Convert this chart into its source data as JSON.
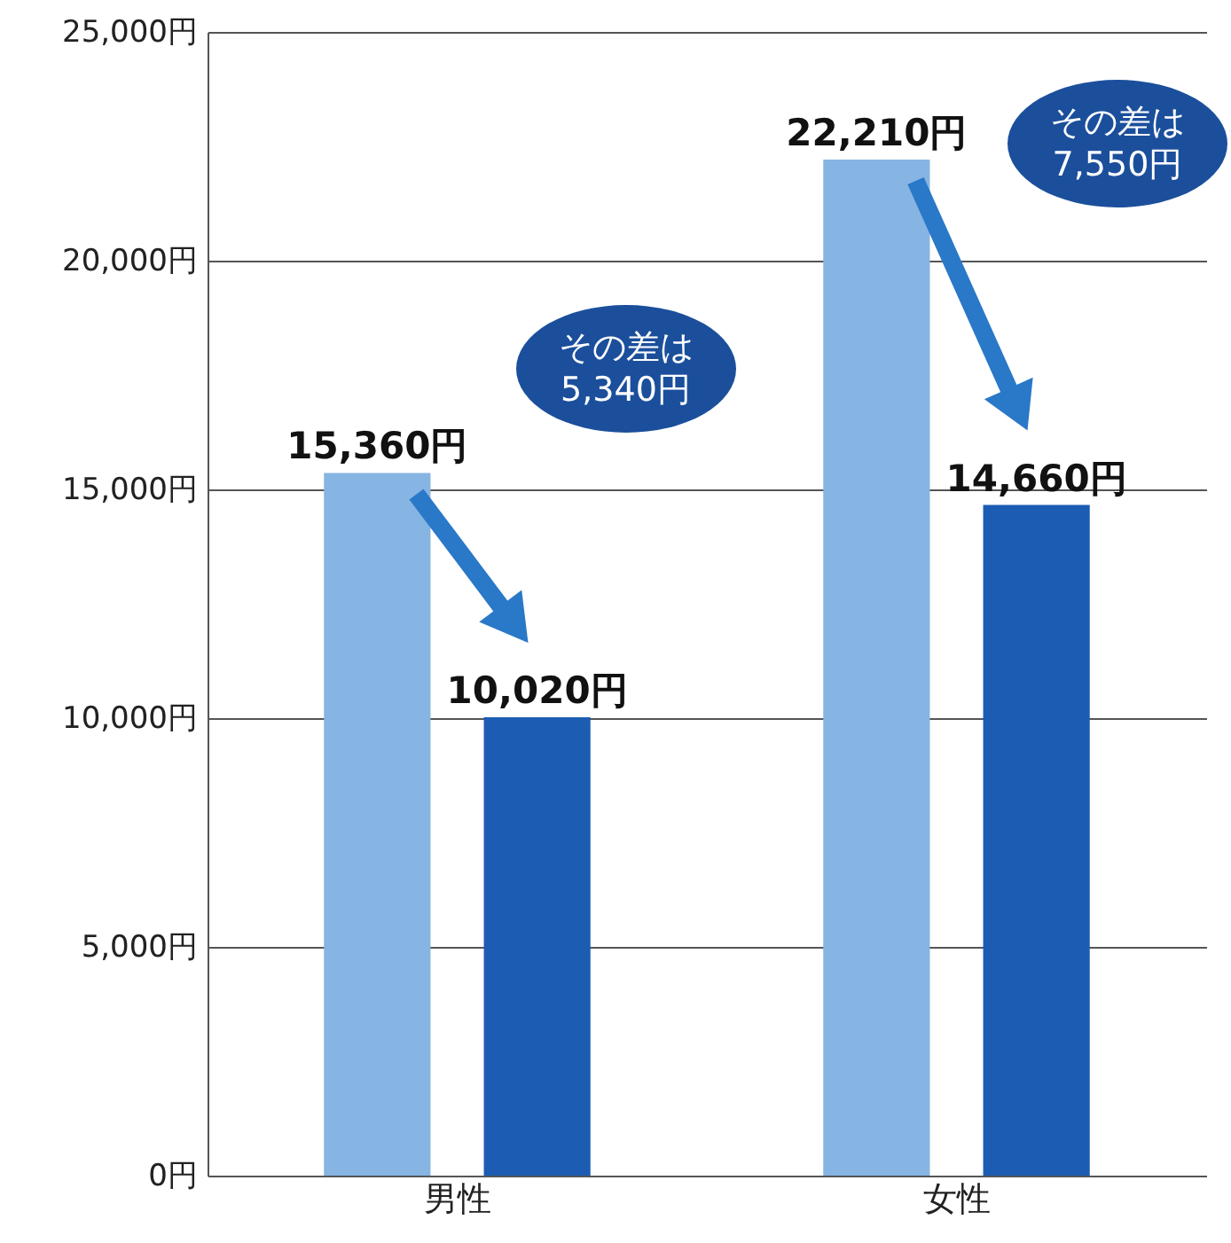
{
  "chart_data": {
    "type": "bar",
    "categories": [
      "男性",
      "女性"
    ],
    "series": [
      {
        "color": "#86b4e3",
        "values": [
          15360,
          22210
        ],
        "value_labels": [
          "15,360円",
          "22,210円"
        ]
      },
      {
        "color": "#1c5db3",
        "values": [
          10020,
          14660
        ],
        "value_labels": [
          "10,020円",
          "14,660円"
        ]
      }
    ],
    "ylim": [
      0,
      25000
    ],
    "yticks": [
      {
        "value": 0,
        "label": "0円"
      },
      {
        "value": 5000,
        "label": "5,000円"
      },
      {
        "value": 10000,
        "label": "10,000円"
      },
      {
        "value": 15000,
        "label": "15,000円"
      },
      {
        "value": 20000,
        "label": "20,000円"
      },
      {
        "value": 25000,
        "label": "25,000円"
      }
    ],
    "grid": "y",
    "annotations": [
      "その差は 5,340円",
      "その差は 7,550円"
    ]
  }
}
